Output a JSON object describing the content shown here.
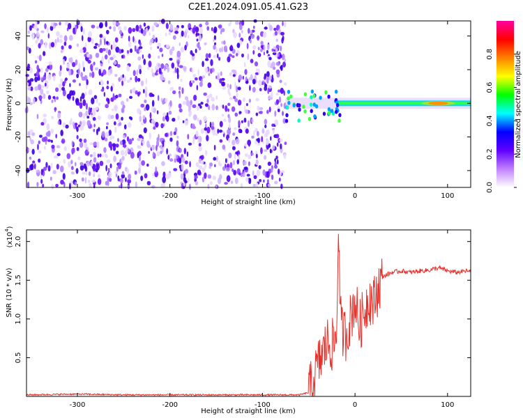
{
  "title": "C2E1.2024.091.05.41.G23",
  "chart_data": [
    {
      "type": "heatmap",
      "xlabel": "Height of straight line (km)",
      "ylabel": "Frequency (Hz)",
      "xlim": [
        -355,
        125
      ],
      "ylim": [
        -50,
        49
      ],
      "xticks": [
        -300,
        -200,
        -100,
        0,
        100
      ],
      "yticks": [
        -40,
        -20,
        0,
        20,
        40
      ],
      "grid": false,
      "colorbar": {
        "label": "Normalized spectral amplitude",
        "range": [
          0.0,
          1.0
        ],
        "ticks": [
          "0.0",
          "0.2",
          "0.4",
          "0.6",
          "0.8"
        ],
        "tick_values": [
          0.0,
          0.2,
          0.4,
          0.6,
          0.8
        ],
        "colormap": [
          "#ffffff",
          "#c080ff",
          "#6000ff",
          "#0000ff",
          "#00ffff",
          "#00ff00",
          "#ffff00",
          "#ff8000",
          "#ff0000",
          "#ff00a0"
        ]
      },
      "features": {
        "noise_region_x": [
          -355,
          -75
        ],
        "noise_amplitude": 0.3,
        "signal_track_y": 0,
        "signal_start_x": -75,
        "peak_x": 90
      }
    },
    {
      "type": "line",
      "xlabel": "Height of straight line (km)",
      "ylabel": "SNR (10 * v/v)",
      "y_multiplier": "(x10",
      "y_multiplier_exp": "4",
      "xlim": [
        -355,
        125
      ],
      "ylim": [
        0,
        2.15
      ],
      "xticks": [
        -300,
        -200,
        -100,
        0,
        100
      ],
      "yticks": [
        0.5,
        1.0,
        1.5,
        2.0
      ],
      "grid": false,
      "color": "#e8302a",
      "series": [
        {
          "x": [
            -355,
            -300,
            -250,
            -200,
            -150,
            -100,
            -60,
            -50,
            -45,
            -40,
            -35,
            -30,
            -25,
            -20,
            -18,
            -15,
            -10,
            -5,
            0,
            5,
            10,
            15,
            20,
            25,
            30,
            40,
            50,
            60,
            70,
            80,
            90,
            95,
            100,
            110,
            120,
            125
          ],
          "y": [
            0.02,
            0.03,
            0.02,
            0.02,
            0.02,
            0.02,
            0.02,
            0.05,
            0.2,
            0.4,
            0.55,
            0.7,
            0.65,
            0.75,
            2.1,
            0.85,
            0.8,
            1.0,
            1.25,
            0.9,
            1.1,
            1.3,
            1.2,
            1.4,
            1.55,
            1.6,
            1.62,
            1.6,
            1.62,
            1.63,
            1.66,
            1.64,
            1.62,
            1.6,
            1.62,
            1.61
          ]
        }
      ]
    }
  ]
}
